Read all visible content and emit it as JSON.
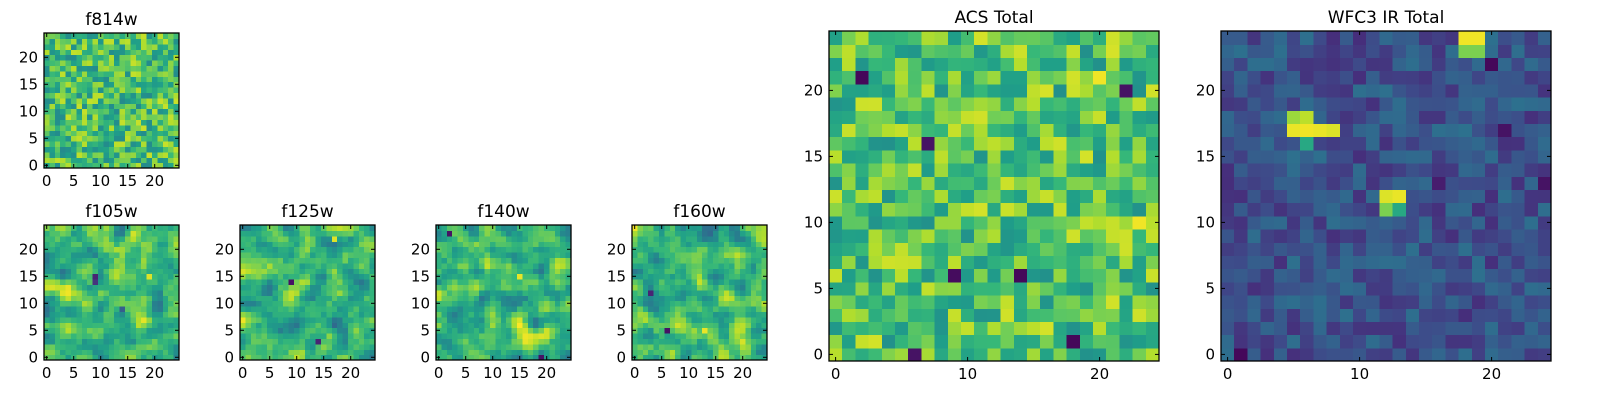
{
  "colormap": "viridis",
  "axes_color": "#000000",
  "chart_data": [
    {
      "id": "f814w",
      "type": "heatmap",
      "title": "f814w",
      "grid_size": 25,
      "xlim": [
        -0.5,
        24.5
      ],
      "ylim": [
        -0.5,
        24.5
      ],
      "xticks": [
        0,
        5,
        10,
        15,
        20
      ],
      "yticks": [
        0,
        5,
        10,
        15,
        20
      ],
      "value_range": [
        0,
        1
      ],
      "seed": 814,
      "smooth": 0,
      "base": 0.7,
      "spread": 0.22,
      "spots": [],
      "note": "approximate random pixel field, mostly green-yellow"
    },
    {
      "id": "f105w",
      "type": "heatmap",
      "title": "f105w",
      "grid_size": 25,
      "xlim": [
        -0.5,
        24.5
      ],
      "ylim": [
        -0.5,
        24.5
      ],
      "xticks": [
        0,
        5,
        10,
        15,
        20
      ],
      "yticks": [
        0,
        5,
        10,
        15,
        20
      ],
      "value_range": [
        0,
        1
      ],
      "seed": 105,
      "smooth": 1,
      "base": 0.68,
      "spread": 0.3,
      "spots": [
        {
          "x": 9,
          "y": 15,
          "v": 0.1
        },
        {
          "x": 9,
          "y": 14,
          "v": 0.15
        },
        {
          "x": 19,
          "y": 15,
          "v": 0.95
        },
        {
          "x": 14,
          "y": 9,
          "v": 0.3
        }
      ]
    },
    {
      "id": "f125w",
      "type": "heatmap",
      "title": "f125w",
      "grid_size": 25,
      "xlim": [
        -0.5,
        24.5
      ],
      "ylim": [
        -0.5,
        24.5
      ],
      "xticks": [
        0,
        5,
        10,
        15,
        20
      ],
      "yticks": [
        0,
        5,
        10,
        15,
        20
      ],
      "value_range": [
        0,
        1
      ],
      "seed": 125,
      "smooth": 1,
      "base": 0.66,
      "spread": 0.32,
      "spots": [
        {
          "x": 9,
          "y": 14,
          "v": 0.05
        },
        {
          "x": 14,
          "y": 3,
          "v": 0.1
        },
        {
          "x": 17,
          "y": 22,
          "v": 0.95
        }
      ]
    },
    {
      "id": "f140w",
      "type": "heatmap",
      "title": "f140w",
      "grid_size": 25,
      "xlim": [
        -0.5,
        24.5
      ],
      "ylim": [
        -0.5,
        24.5
      ],
      "xticks": [
        0,
        5,
        10,
        15,
        20
      ],
      "yticks": [
        0,
        5,
        10,
        15,
        20
      ],
      "value_range": [
        0,
        1
      ],
      "seed": 140,
      "smooth": 1,
      "base": 0.7,
      "spread": 0.3,
      "spots": [
        {
          "x": 2,
          "y": 23,
          "v": 0.05
        },
        {
          "x": 19,
          "y": 0,
          "v": 0.05
        },
        {
          "x": 15,
          "y": 15,
          "v": 0.97
        }
      ]
    },
    {
      "id": "f160w",
      "type": "heatmap",
      "title": "f160w",
      "grid_size": 25,
      "xlim": [
        -0.5,
        24.5
      ],
      "ylim": [
        -0.5,
        24.5
      ],
      "xticks": [
        0,
        5,
        10,
        15,
        20
      ],
      "yticks": [
        0,
        5,
        10,
        15,
        20
      ],
      "value_range": [
        0,
        1
      ],
      "seed": 160,
      "smooth": 1,
      "base": 0.66,
      "spread": 0.32,
      "spots": [
        {
          "x": 6,
          "y": 5,
          "v": 0.05
        },
        {
          "x": 13,
          "y": 5,
          "v": 0.97
        },
        {
          "x": 3,
          "y": 12,
          "v": 0.1
        }
      ]
    },
    {
      "id": "acs_total",
      "type": "heatmap",
      "title": "ACS Total",
      "grid_size": 25,
      "xlim": [
        -0.5,
        24.5
      ],
      "ylim": [
        -0.5,
        24.5
      ],
      "xticks": [
        0,
        10,
        20
      ],
      "yticks": [
        0,
        5,
        10,
        15,
        20
      ],
      "value_range": [
        0,
        1
      ],
      "seed": 7,
      "smooth": 0,
      "base": 0.72,
      "spread": 0.22,
      "spots": [
        {
          "x": 2,
          "y": 21,
          "v": 0.02
        },
        {
          "x": 7,
          "y": 16,
          "v": 0.05
        },
        {
          "x": 9,
          "y": 6,
          "v": 0.03
        },
        {
          "x": 14,
          "y": 6,
          "v": 0.02
        },
        {
          "x": 18,
          "y": 1,
          "v": 0.02
        },
        {
          "x": 22,
          "y": 20,
          "v": 0.05
        },
        {
          "x": 6,
          "y": 0,
          "v": 0.05
        },
        {
          "x": 20,
          "y": 21,
          "v": 0.98
        },
        {
          "x": 23,
          "y": 10,
          "v": 0.98
        }
      ]
    },
    {
      "id": "wfc3_ir_total",
      "type": "heatmap",
      "title": "WFC3 IR Total",
      "grid_size": 25,
      "xlim": [
        -0.5,
        24.5
      ],
      "ylim": [
        -0.5,
        24.5
      ],
      "xticks": [
        0,
        10,
        20
      ],
      "yticks": [
        0,
        5,
        10,
        15,
        20
      ],
      "value_range": [
        0,
        1
      ],
      "seed": 33,
      "smooth": 0,
      "base": 0.25,
      "spread": 0.12,
      "spots": [
        {
          "x": 18,
          "y": 24,
          "v": 0.98
        },
        {
          "x": 19,
          "y": 24,
          "v": 0.98
        },
        {
          "x": 18,
          "y": 23,
          "v": 0.8
        },
        {
          "x": 19,
          "y": 23,
          "v": 0.8
        },
        {
          "x": 5,
          "y": 18,
          "v": 0.85
        },
        {
          "x": 6,
          "y": 18,
          "v": 0.9
        },
        {
          "x": 5,
          "y": 17,
          "v": 0.97
        },
        {
          "x": 6,
          "y": 17,
          "v": 0.98
        },
        {
          "x": 7,
          "y": 17,
          "v": 0.97
        },
        {
          "x": 8,
          "y": 17,
          "v": 0.95
        },
        {
          "x": 6,
          "y": 16,
          "v": 0.6
        },
        {
          "x": 12,
          "y": 12,
          "v": 0.95
        },
        {
          "x": 13,
          "y": 12,
          "v": 0.97
        },
        {
          "x": 12,
          "y": 11,
          "v": 0.8
        },
        {
          "x": 13,
          "y": 11,
          "v": 0.6
        },
        {
          "x": 20,
          "y": 22,
          "v": 0.02
        },
        {
          "x": 21,
          "y": 17,
          "v": 0.05
        },
        {
          "x": 24,
          "y": 13,
          "v": 0.05
        },
        {
          "x": 16,
          "y": 13,
          "v": 0.08
        },
        {
          "x": 1,
          "y": 0,
          "v": 0.02
        }
      ]
    }
  ]
}
